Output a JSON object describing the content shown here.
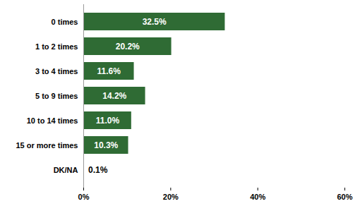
{
  "chart_data": {
    "type": "bar",
    "orientation": "horizontal",
    "categories": [
      "0 times",
      "1 to 2 times",
      "3 to 4 times",
      "5 to 9 times",
      "10 to 14 times",
      "15 or more times",
      "DK/NA"
    ],
    "values": [
      32.5,
      20.2,
      11.6,
      14.2,
      11.0,
      10.3,
      0.1
    ],
    "value_labels": [
      "32.5%",
      "20.2%",
      "11.6%",
      "14.2%",
      "11.0%",
      "10.3%",
      "0.1%"
    ],
    "data_labels": true,
    "color": "#2f6b34",
    "xlim": [
      0,
      60
    ],
    "xticks": [
      {
        "value": 0,
        "label": "0%"
      },
      {
        "value": 20,
        "label": "20%"
      },
      {
        "value": 40,
        "label": "40%"
      },
      {
        "value": 60,
        "label": "60%"
      }
    ],
    "grid": false
  }
}
